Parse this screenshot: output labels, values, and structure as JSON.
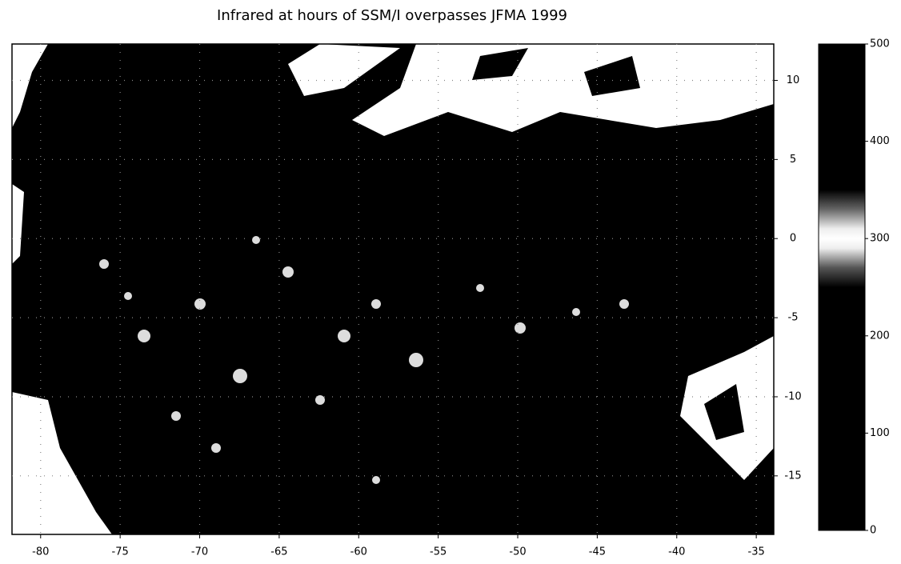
{
  "chart_data": {
    "type": "heatmap",
    "title": "Infrared at hours of SSM/I overpasses JFMA 1999",
    "xlim": [
      -81.8,
      -33.9
    ],
    "xticks": [
      -80,
      -75,
      -70,
      -65,
      -60,
      -55,
      -50,
      -45,
      -40,
      -35
    ],
    "ylim": [
      -18.7,
      12.3
    ],
    "yticks": [
      -15,
      -10,
      -5,
      0,
      5,
      10
    ],
    "y_axis_side": "right",
    "grid": true,
    "colorbar": {
      "lim": [
        0,
        500
      ],
      "ticks": [
        0,
        100,
        200,
        300,
        400,
        500
      ]
    }
  }
}
